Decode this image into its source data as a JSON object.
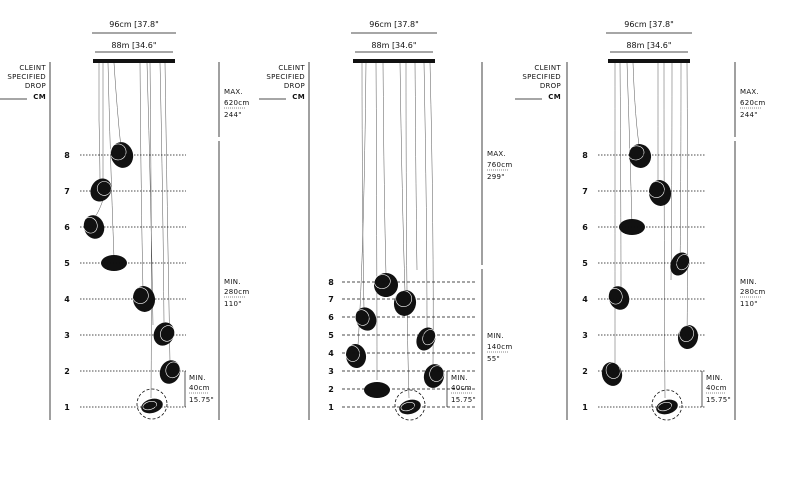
{
  "diagrams": [
    {
      "canopy_outer_label": "96cm [37.8\"",
      "canopy_inner_label": "88m [34.6\"",
      "client_drop": [
        "CLEINT",
        "SPECIFIED",
        "DROP",
        "CM"
      ],
      "max": {
        "label": "MAX.",
        "cm": "620cm",
        "in": "244\""
      },
      "min": {
        "label": "MIN.",
        "cm": "280cm",
        "in": "110\""
      },
      "bottom_min": {
        "label": "MIN.",
        "cm": "40cm",
        "in": "15.75\""
      },
      "levels": [
        "8",
        "7",
        "6",
        "5",
        "4",
        "3",
        "2",
        "1"
      ]
    },
    {
      "canopy_outer_label": "96cm [37.8\"",
      "canopy_inner_label": "88m [34.6\"",
      "client_drop": [
        "CLEINT",
        "SPECIFIED",
        "DROP",
        "CM"
      ],
      "max": {
        "label": "MAX.",
        "cm": "760cm",
        "in": "299\""
      },
      "min": {
        "label": "MIN.",
        "cm": "140cm",
        "in": "55\""
      },
      "bottom_min": {
        "label": "MIN.",
        "cm": "40cm",
        "in": "15.75\""
      },
      "levels": [
        "8",
        "7",
        "6",
        "5",
        "4",
        "3",
        "2",
        "1"
      ]
    },
    {
      "canopy_outer_label": "96cm [37.8\"",
      "canopy_inner_label": "88m [34.6\"",
      "client_drop": [
        "CLEINT",
        "SPECIFIED",
        "DROP",
        "CM"
      ],
      "max": {
        "label": "MAX.",
        "cm": "620cm",
        "in": "244\""
      },
      "min": {
        "label": "MIN.",
        "cm": "280cm",
        "in": "110\""
      },
      "bottom_min": {
        "label": "MIN.",
        "cm": "40cm",
        "in": "15.75\""
      },
      "levels": [
        "8",
        "7",
        "6",
        "5",
        "4",
        "3",
        "2",
        "1"
      ]
    }
  ]
}
